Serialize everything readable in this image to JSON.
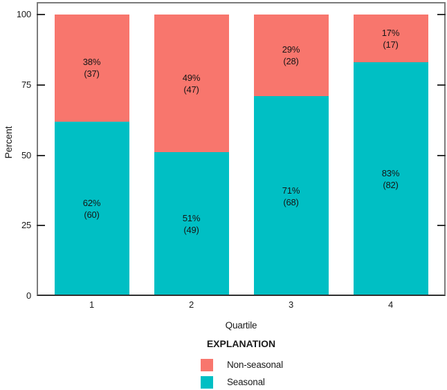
{
  "axes": {
    "y_label": "Percent",
    "x_label": "Quartile",
    "y_ticks": [
      "0",
      "25",
      "50",
      "75",
      "100"
    ],
    "x_ticks": [
      "1",
      "2",
      "3",
      "4"
    ]
  },
  "legend": {
    "title": "EXPLANATION",
    "items": [
      {
        "label": "Non-seasonal",
        "color": "#F8766D"
      },
      {
        "label": "Seasonal",
        "color": "#00BFC4"
      }
    ]
  },
  "colors": {
    "non_seasonal": "#F8766D",
    "seasonal": "#00BFC4",
    "frame": "#7b7b7b",
    "axis_line": "#2f2f2f",
    "text": "#1a1a1a",
    "background": "#ffffff"
  },
  "chart_data": {
    "type": "bar",
    "stacked": true,
    "orientation": "vertical",
    "title": "",
    "xlabel": "Quartile",
    "ylabel": "Percent",
    "categories": [
      "1",
      "2",
      "3",
      "4"
    ],
    "y_tick_values": [
      0,
      25,
      50,
      75,
      100
    ],
    "ylim": [
      0,
      100
    ],
    "grid": false,
    "legend_position": "bottom",
    "series": [
      {
        "name": "Seasonal",
        "color": "#00BFC4",
        "values_percent": [
          62,
          51,
          71,
          83
        ],
        "counts": [
          60,
          49,
          68,
          82
        ]
      },
      {
        "name": "Non-seasonal",
        "color": "#F8766D",
        "values_percent": [
          38,
          49,
          29,
          17
        ],
        "counts": [
          37,
          47,
          28,
          17
        ]
      }
    ],
    "bars": [
      {
        "category": "1",
        "seasonal": {
          "pct": 62,
          "pct_label": "62%",
          "count_label": "(60)"
        },
        "non_seasonal": {
          "pct": 38,
          "pct_label": "38%",
          "count_label": "(37)"
        }
      },
      {
        "category": "2",
        "seasonal": {
          "pct": 51,
          "pct_label": "51%",
          "count_label": "(49)"
        },
        "non_seasonal": {
          "pct": 49,
          "pct_label": "49%",
          "count_label": "(47)"
        }
      },
      {
        "category": "3",
        "seasonal": {
          "pct": 71,
          "pct_label": "71%",
          "count_label": "(68)"
        },
        "non_seasonal": {
          "pct": 29,
          "pct_label": "29%",
          "count_label": "(28)"
        }
      },
      {
        "category": "4",
        "seasonal": {
          "pct": 83,
          "pct_label": "83%",
          "count_label": "(82)"
        },
        "non_seasonal": {
          "pct": 17,
          "pct_label": "17%",
          "count_label": "(17)"
        }
      }
    ]
  }
}
